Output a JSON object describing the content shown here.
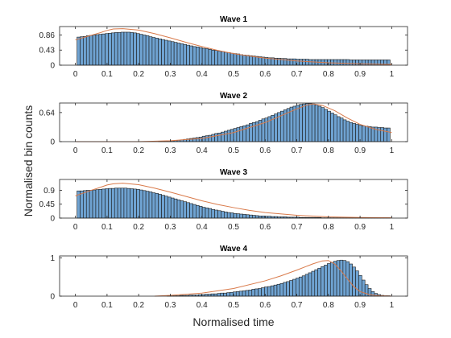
{
  "figure": {
    "xlabel": "Normalised time",
    "ylabel": "Normalised bin counts"
  },
  "colors": {
    "bar_fill": "#6fa3d2",
    "bar_edge": "#1a1a1a",
    "fit_line": "#d97a4a",
    "axis": "#262626"
  },
  "chart_data": [
    {
      "type": "bar",
      "title": "Wave 1",
      "xlim": [
        -0.05,
        1.05
      ],
      "ylim": [
        0,
        1.1
      ],
      "xticks": [
        0,
        0.1,
        0.2,
        0.3,
        0.4,
        0.5,
        0.6,
        0.7,
        0.8,
        0.9,
        1
      ],
      "xtick_labels": [
        "0",
        "0.1",
        "0.2",
        "0.3",
        "0.4",
        "0.5",
        "0.6",
        "0.7",
        "0.8",
        "0.9",
        "1"
      ],
      "yticks": [
        0,
        0.43,
        0.86
      ],
      "ytick_labels": [
        "0",
        "0.43",
        "0.86"
      ],
      "bar_x_range": [
        0.005,
        0.995
      ],
      "bar_values": [
        0.8,
        0.81,
        0.82,
        0.84,
        0.85,
        0.86,
        0.87,
        0.88,
        0.89,
        0.9,
        0.91,
        0.92,
        0.93,
        0.93,
        0.94,
        0.94,
        0.94,
        0.93,
        0.92,
        0.9,
        0.88,
        0.86,
        0.84,
        0.81,
        0.79,
        0.77,
        0.75,
        0.73,
        0.71,
        0.69,
        0.67,
        0.65,
        0.63,
        0.61,
        0.59,
        0.57,
        0.55,
        0.53,
        0.52,
        0.5,
        0.48,
        0.47,
        0.45,
        0.43,
        0.42,
        0.4,
        0.39,
        0.37,
        0.36,
        0.34,
        0.33,
        0.32,
        0.3,
        0.29,
        0.28,
        0.27,
        0.26,
        0.25,
        0.24,
        0.23,
        0.22,
        0.21,
        0.21,
        0.2,
        0.2,
        0.19,
        0.19,
        0.18,
        0.18,
        0.18,
        0.17,
        0.17,
        0.17,
        0.17,
        0.16,
        0.16,
        0.16,
        0.16,
        0.16,
        0.16,
        0.16,
        0.16,
        0.16,
        0.16,
        0.16,
        0.16,
        0.16,
        0.15,
        0.15,
        0.15,
        0.15,
        0.15,
        0.15,
        0.15,
        0.15,
        0.15,
        0.15,
        0.15,
        0.15,
        0.15
      ],
      "fit_line": {
        "x": [
          0.0,
          0.05,
          0.08,
          0.1,
          0.12,
          0.15,
          0.2,
          0.25,
          0.3,
          0.35,
          0.4,
          0.45,
          0.5,
          0.55,
          0.6,
          0.7,
          0.8,
          0.9,
          1.0
        ],
        "y": [
          0.72,
          0.85,
          0.93,
          0.99,
          1.03,
          1.04,
          1.0,
          0.9,
          0.78,
          0.65,
          0.53,
          0.42,
          0.33,
          0.26,
          0.2,
          0.12,
          0.07,
          0.04,
          0.02
        ]
      }
    },
    {
      "type": "bar",
      "title": "Wave 2",
      "xlim": [
        -0.05,
        1.05
      ],
      "ylim": [
        0,
        0.85
      ],
      "xticks": [
        0,
        0.1,
        0.2,
        0.3,
        0.4,
        0.5,
        0.6,
        0.7,
        0.8,
        0.9,
        1
      ],
      "xtick_labels": [
        "0",
        "0.1",
        "0.2",
        "0.3",
        "0.4",
        "0.5",
        "0.6",
        "0.7",
        "0.8",
        "0.9",
        "1"
      ],
      "yticks": [
        0,
        0.64
      ],
      "ytick_labels": [
        "0",
        "0.64"
      ],
      "bar_x_range": [
        0.005,
        0.995
      ],
      "bar_values": [
        0,
        0,
        0,
        0,
        0,
        0,
        0,
        0,
        0,
        0,
        0,
        0,
        0,
        0,
        0,
        0,
        0,
        0,
        0,
        0,
        0,
        0,
        0,
        0,
        0,
        0,
        0.01,
        0.01,
        0.01,
        0.02,
        0.02,
        0.03,
        0.03,
        0.04,
        0.05,
        0.06,
        0.07,
        0.08,
        0.09,
        0.1,
        0.12,
        0.13,
        0.14,
        0.16,
        0.18,
        0.19,
        0.21,
        0.23,
        0.25,
        0.27,
        0.29,
        0.31,
        0.33,
        0.35,
        0.37,
        0.4,
        0.42,
        0.44,
        0.47,
        0.5,
        0.52,
        0.55,
        0.58,
        0.61,
        0.64,
        0.67,
        0.7,
        0.73,
        0.76,
        0.78,
        0.8,
        0.82,
        0.83,
        0.84,
        0.84,
        0.83,
        0.81,
        0.78,
        0.75,
        0.71,
        0.67,
        0.63,
        0.59,
        0.55,
        0.52,
        0.48,
        0.45,
        0.42,
        0.4,
        0.38,
        0.36,
        0.35,
        0.34,
        0.33,
        0.32,
        0.32,
        0.31,
        0.31,
        0.3,
        0.3
      ],
      "fit_line": {
        "x": [
          0.0,
          0.2,
          0.3,
          0.4,
          0.5,
          0.6,
          0.65,
          0.7,
          0.73,
          0.75,
          0.78,
          0.82,
          0.86,
          0.9,
          0.95,
          1.0
        ],
        "y": [
          0,
          0,
          0.02,
          0.07,
          0.2,
          0.42,
          0.57,
          0.72,
          0.8,
          0.83,
          0.8,
          0.68,
          0.52,
          0.38,
          0.27,
          0.2
        ]
      }
    },
    {
      "type": "bar",
      "title": "Wave 3",
      "xlim": [
        -0.05,
        1.05
      ],
      "ylim": [
        0,
        1.25
      ],
      "xticks": [
        0,
        0.1,
        0.2,
        0.3,
        0.4,
        0.5,
        0.6,
        0.7,
        0.8,
        0.9,
        1
      ],
      "xtick_labels": [
        "0",
        "0.1",
        "0.2",
        "0.3",
        "0.4",
        "0.5",
        "0.6",
        "0.7",
        "0.8",
        "0.9",
        "1"
      ],
      "yticks": [
        0,
        0.45,
        0.9
      ],
      "ytick_labels": [
        "0",
        "0.45",
        "0.9"
      ],
      "bar_x_range": [
        0.005,
        0.995
      ],
      "bar_values": [
        0.88,
        0.88,
        0.89,
        0.9,
        0.9,
        0.91,
        0.92,
        0.93,
        0.94,
        0.95,
        0.96,
        0.96,
        0.97,
        0.97,
        0.97,
        0.97,
        0.96,
        0.95,
        0.94,
        0.93,
        0.91,
        0.89,
        0.87,
        0.85,
        0.82,
        0.8,
        0.77,
        0.74,
        0.71,
        0.68,
        0.65,
        0.62,
        0.59,
        0.56,
        0.53,
        0.5,
        0.47,
        0.44,
        0.41,
        0.38,
        0.35,
        0.33,
        0.31,
        0.28,
        0.26,
        0.24,
        0.22,
        0.2,
        0.18,
        0.17,
        0.15,
        0.14,
        0.13,
        0.12,
        0.11,
        0.1,
        0.09,
        0.08,
        0.07,
        0.07,
        0.06,
        0.06,
        0.05,
        0.05,
        0.04,
        0.04,
        0.04,
        0.03,
        0.03,
        0.03,
        0.03,
        0.02,
        0.02,
        0.02,
        0.02,
        0.02,
        0.02,
        0.02,
        0.01,
        0.01,
        0.01,
        0.01,
        0.01,
        0.01,
        0.01,
        0.01,
        0.01,
        0.01,
        0.01,
        0.01,
        0.01,
        0.01,
        0.01,
        0.01,
        0.01,
        0.01,
        0.01,
        0.01,
        0.01,
        0.01
      ],
      "fit_line": {
        "x": [
          0.0,
          0.05,
          0.08,
          0.1,
          0.12,
          0.15,
          0.2,
          0.25,
          0.3,
          0.35,
          0.4,
          0.45,
          0.5,
          0.55,
          0.6,
          0.7,
          0.8,
          0.9,
          1.0
        ],
        "y": [
          0.72,
          0.9,
          1.0,
          1.07,
          1.11,
          1.13,
          1.08,
          0.97,
          0.84,
          0.7,
          0.56,
          0.44,
          0.34,
          0.25,
          0.18,
          0.09,
          0.04,
          0.02,
          0.01
        ]
      }
    },
    {
      "type": "bar",
      "title": "Wave 4",
      "xlim": [
        -0.05,
        1.05
      ],
      "ylim": [
        0,
        1.05
      ],
      "xticks": [
        0,
        0.1,
        0.2,
        0.3,
        0.4,
        0.5,
        0.6,
        0.7,
        0.8,
        0.9,
        1
      ],
      "xtick_labels": [
        "0",
        "0.1",
        "0.2",
        "0.3",
        "0.4",
        "0.5",
        "0.6",
        "0.7",
        "0.8",
        "0.9",
        "1"
      ],
      "yticks": [
        0,
        1
      ],
      "ytick_labels": [
        "0",
        "1"
      ],
      "bar_x_range": [
        0.25,
        0.995
      ],
      "bar_values": [
        0.0,
        0.0,
        0.0,
        0.0,
        0.01,
        0.01,
        0.01,
        0.01,
        0.02,
        0.02,
        0.02,
        0.03,
        0.03,
        0.03,
        0.04,
        0.04,
        0.05,
        0.05,
        0.06,
        0.06,
        0.07,
        0.08,
        0.08,
        0.09,
        0.1,
        0.11,
        0.12,
        0.13,
        0.14,
        0.15,
        0.16,
        0.18,
        0.19,
        0.2,
        0.22,
        0.24,
        0.25,
        0.27,
        0.29,
        0.31,
        0.33,
        0.36,
        0.38,
        0.41,
        0.44,
        0.47,
        0.5,
        0.53,
        0.57,
        0.61,
        0.65,
        0.69,
        0.73,
        0.77,
        0.81,
        0.85,
        0.88,
        0.91,
        0.93,
        0.94,
        0.93,
        0.9,
        0.84,
        0.76,
        0.66,
        0.54,
        0.42,
        0.3,
        0.2,
        0.12,
        0.07,
        0.04,
        0.02,
        0.01,
        0.01
      ],
      "fit_line": {
        "x": [
          0.25,
          0.3,
          0.4,
          0.5,
          0.6,
          0.65,
          0.7,
          0.75,
          0.78,
          0.8,
          0.82,
          0.84,
          0.86,
          0.88,
          0.9,
          0.93,
          0.96,
          1.0
        ],
        "y": [
          0.0,
          0.02,
          0.08,
          0.2,
          0.4,
          0.53,
          0.68,
          0.84,
          0.92,
          0.93,
          0.84,
          0.66,
          0.45,
          0.25,
          0.12,
          0.04,
          0.01,
          0.0
        ]
      }
    }
  ]
}
